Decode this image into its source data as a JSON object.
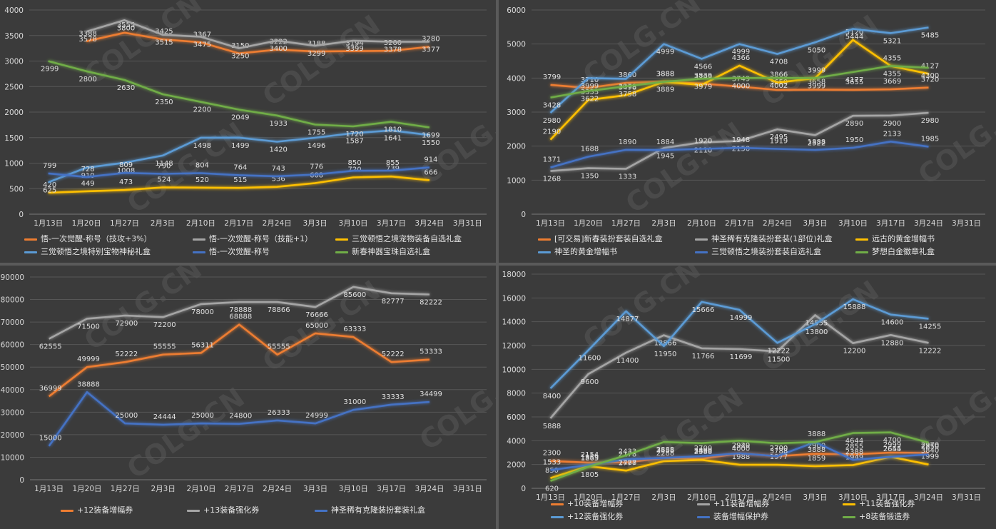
{
  "chart_data": [
    {
      "type": "line",
      "x": [
        "1月13日",
        "1月20日",
        "1月27日",
        "2月3日",
        "2月10日",
        "2月17日",
        "2月24日",
        "3月3日",
        "3月10日",
        "3月17日",
        "3月24日",
        "3月31日"
      ],
      "ylim": [
        0,
        4000
      ],
      "yticks": [
        0,
        500,
        1000,
        1500,
        2000,
        2500,
        3000,
        3500,
        4000
      ],
      "grid": true,
      "legend_position": "bottom",
      "series": [
        {
          "name": "悟-一次觉醒-称号（技攻+3%）",
          "color": "#ed7d31",
          "values": [
            null,
            3388,
            3555,
            3425,
            3367,
            3150,
            3222,
            3188,
            3194,
            3200,
            3280,
            null
          ]
        },
        {
          "name": "悟-一次觉醒-称号（技能+1）",
          "color": "#a5a5a5",
          "values": [
            null,
            3578,
            3800,
            3515,
            3475,
            3250,
            3400,
            3299,
            3399,
            3378,
            3377,
            null
          ]
        },
        {
          "name": "三觉顿悟之境宠物装备自选礼盒",
          "color": "#ffc000",
          "values": [
            420,
            449,
            473,
            524,
            520,
            515,
            536,
            608,
            720,
            739,
            666,
            null
          ]
        },
        {
          "name": "三觉顿悟之境特别宝物神秘礼盒",
          "color": "#5b9bd5",
          "values": [
            625,
            910,
            1008,
            1148,
            1498,
            1499,
            1420,
            1496,
            1587,
            1641,
            1550,
            null
          ]
        },
        {
          "name": "悟-一次觉醒-称号",
          "color": "#4472c4",
          "values": [
            799,
            728,
            809,
            790,
            804,
            764,
            743,
            776,
            850,
            855,
            914,
            null
          ]
        },
        {
          "name": "新春神器宝珠自选礼盒",
          "color": "#70ad47",
          "values": [
            2999,
            2800,
            2630,
            2350,
            2200,
            2049,
            1933,
            1755,
            1720,
            1810,
            1699,
            null
          ]
        }
      ]
    },
    {
      "type": "line",
      "x": [
        "1月13日",
        "1月20日",
        "1月27日",
        "2月3日",
        "2月10日",
        "2月17日",
        "2月24日",
        "3月3日",
        "3月10日",
        "3月17日",
        "3月24日",
        "3月31日"
      ],
      "ylim": [
        0,
        6000
      ],
      "yticks": [
        0,
        1000,
        2000,
        3000,
        4000,
        5000,
        6000
      ],
      "grid": true,
      "legend_position": "bottom",
      "series": [
        {
          "name": "[可交易]新春装扮套装自选礼盒",
          "color": "#ed7d31",
          "values": [
            3799,
            3710,
            3860,
            3888,
            3839,
            3749,
            3650,
            3658,
            3655,
            3669,
            3720,
            null
          ]
        },
        {
          "name": "神圣稀有克隆装扮套装(1部位)礼盒",
          "color": "#a5a5a5",
          "values": [
            1268,
            1350,
            1333,
            1945,
            2110,
            2150,
            2495,
            2322,
            2890,
            2900,
            2980,
            null
          ]
        },
        {
          "name": "远古的黄金增幅书",
          "color": "#ffc000",
          "values": [
            2190,
            3355,
            3498,
            3888,
            3799,
            4366,
            3866,
            3999,
            5120,
            4355,
            4127,
            null
          ]
        },
        {
          "name": "神圣的黄金增幅书",
          "color": "#5b9bd5",
          "values": [
            2980,
            3999,
            3978,
            4999,
            4566,
            4999,
            4708,
            5050,
            5444,
            5321,
            5485,
            null
          ]
        },
        {
          "name": "三觉顿悟之境装扮套装自选礼盒",
          "color": "#4472c4",
          "values": [
            1371,
            1688,
            1890,
            1884,
            1920,
            1948,
            1919,
            1888,
            1950,
            2133,
            1985,
            null
          ]
        },
        {
          "name": "梦想白金徽章礼盒",
          "color": "#70ad47",
          "values": [
            3428,
            3622,
            3758,
            3889,
            3979,
            4000,
            4002,
            3999,
            4177,
            4355,
            4300,
            null
          ]
        }
      ]
    },
    {
      "type": "line",
      "x": [
        "1月13日",
        "1月20日",
        "1月27日",
        "2月3日",
        "2月10日",
        "2月17日",
        "2月24日",
        "3月3日",
        "3月10日",
        "3月17日",
        "3月24日",
        "3月31日"
      ],
      "ylim": [
        0,
        90000
      ],
      "yticks": [
        0,
        10000,
        20000,
        30000,
        40000,
        50000,
        60000,
        70000,
        80000,
        90000
      ],
      "grid": true,
      "legend_position": "bottom",
      "series": [
        {
          "name": "+12装备增幅券",
          "color": "#ed7d31",
          "values": [
            36999,
            49999,
            52222,
            55555,
            56311,
            68888,
            55555,
            65000,
            63333,
            52222,
            53333,
            null
          ]
        },
        {
          "name": "+13装备强化券",
          "color": "#a5a5a5",
          "values": [
            62555,
            71500,
            72900,
            72200,
            78000,
            78888,
            78866,
            76666,
            85600,
            82777,
            82222,
            null
          ]
        },
        {
          "name": "神圣稀有克隆装扮套装礼盒",
          "color": "#4472c4",
          "values": [
            15000,
            38888,
            25000,
            24444,
            25000,
            24800,
            26333,
            24999,
            31000,
            33333,
            34499,
            null
          ]
        }
      ]
    },
    {
      "type": "line",
      "x": [
        "1月13日",
        "1月20日",
        "1月27日",
        "2月3日",
        "2月10日",
        "2月17日",
        "2月24日",
        "3月3日",
        "3月10日",
        "3月17日",
        "3月24日",
        "3月31日"
      ],
      "ylim": [
        0,
        18000
      ],
      "yticks": [
        0,
        2000,
        4000,
        6000,
        8000,
        10000,
        12000,
        14000,
        16000,
        18000
      ],
      "grid": true,
      "legend_position": "bottom",
      "series": [
        {
          "name": "+10装备增幅券",
          "color": "#ed7d31",
          "values": [
            2300,
            2154,
            2178,
            2555,
            2490,
            2929,
            2700,
            2900,
            2855,
            2999,
            2970,
            null
          ]
        },
        {
          "name": "+11装备增幅券",
          "color": "#a5a5a5",
          "values": [
            5888,
            9600,
            11400,
            12866,
            11766,
            11699,
            11500,
            14555,
            12200,
            12880,
            12222,
            null
          ]
        },
        {
          "name": "+11装备强化券",
          "color": "#ffc000",
          "values": [
            850,
            1865,
            1488,
            2288,
            2388,
            1988,
            1977,
            1859,
            1949,
            2655,
            1999,
            null
          ]
        },
        {
          "name": "+12装备强化券",
          "color": "#5b9bd5",
          "values": [
            8400,
            11600,
            14877,
            11950,
            15666,
            14999,
            12222,
            13800,
            15888,
            14600,
            14255,
            null
          ]
        },
        {
          "name": "装备增幅保护券",
          "color": "#4472c4",
          "values": [
            1533,
            1959,
            2433,
            2555,
            2700,
            2940,
            2700,
            3888,
            2388,
            2644,
            2850,
            null
          ]
        },
        {
          "name": "+8装备锻造券",
          "color": "#70ad47",
          "values": [
            620,
            1805,
            2777,
            3888,
            3800,
            4000,
            3788,
            3888,
            4644,
            4700,
            3840,
            null
          ]
        }
      ]
    }
  ],
  "watermark": "COLG.CN"
}
